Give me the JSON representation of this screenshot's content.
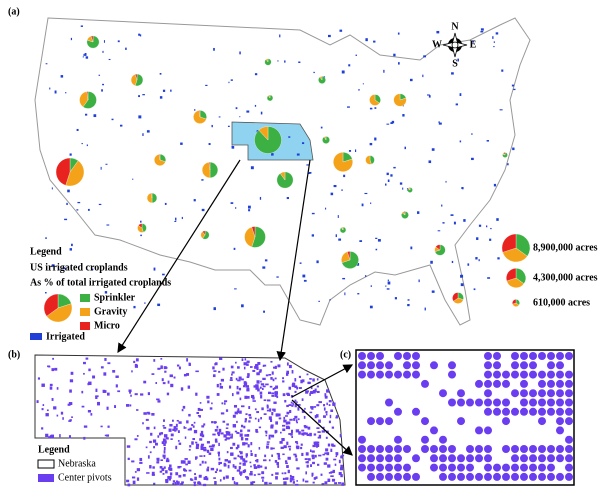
{
  "panel_a": {
    "label": "(a)",
    "compass": {
      "n": "N",
      "s": "S",
      "e": "E",
      "w": "W"
    },
    "legend": {
      "title": "Legend",
      "subtitle": "US irrigated croplands",
      "note": "As % of total irrigated croplands",
      "categories": [
        {
          "name": "Sprinkler",
          "color": "#3cb043"
        },
        {
          "name": "Gravity",
          "color": "#f5a21b"
        },
        {
          "name": "Micro",
          "color": "#e8221f"
        }
      ],
      "irrigated": {
        "name": "Irrigated",
        "color": "#1f3fd6"
      }
    },
    "size_legend": [
      {
        "value": 8900000,
        "label": "8,900,000 acres"
      },
      {
        "value": 4300000,
        "label": "4,300,000 acres"
      },
      {
        "value": 610000,
        "label": "610,000 acres"
      }
    ],
    "pies": [
      {
        "acres": 1700000,
        "shares": [
          80,
          15,
          5
        ]
      },
      {
        "acres": 1600000,
        "shares": [
          55,
          40,
          5
        ]
      },
      {
        "acres": 3300000,
        "shares": [
          60,
          38,
          2
        ]
      },
      {
        "acres": 2000000,
        "shares": [
          30,
          68,
          2
        ]
      },
      {
        "acres": 1500000,
        "shares": [
          30,
          68,
          2
        ]
      },
      {
        "acres": 1100000,
        "shares": [
          50,
          48,
          2
        ]
      },
      {
        "acres": 8900000,
        "shares": [
          10,
          45,
          45
        ]
      },
      {
        "acres": 2800000,
        "shares": [
          50,
          48,
          2
        ]
      },
      {
        "acres": 900000,
        "shares": [
          45,
          40,
          15
        ]
      },
      {
        "acres": 800000,
        "shares": [
          60,
          30,
          10
        ]
      },
      {
        "acres": 5000000,
        "shares": [
          55,
          40,
          5
        ]
      },
      {
        "acres": 8300000,
        "shares": [
          88,
          12,
          0
        ]
      },
      {
        "acres": 3000000,
        "shares": [
          90,
          10,
          0
        ]
      },
      {
        "acres": 400000,
        "shares": [
          90,
          10,
          0
        ]
      },
      {
        "acres": 500000,
        "shares": [
          90,
          10,
          0
        ]
      },
      {
        "acres": 600000,
        "shares": [
          90,
          10,
          0
        ]
      },
      {
        "acres": 600000,
        "shares": [
          92,
          8,
          0
        ]
      },
      {
        "acres": 4300000,
        "shares": [
          20,
          80,
          0
        ]
      },
      {
        "acres": 1400000,
        "shares": [
          35,
          65,
          0
        ]
      },
      {
        "acres": 1800000,
        "shares": [
          20,
          80,
          0
        ]
      },
      {
        "acres": 900000,
        "shares": [
          45,
          55,
          0
        ]
      },
      {
        "acres": 400000,
        "shares": [
          90,
          8,
          2
        ]
      },
      {
        "acres": 300000,
        "shares": [
          85,
          10,
          5
        ]
      },
      {
        "acres": 600000,
        "shares": [
          85,
          10,
          5
        ]
      },
      {
        "acres": 1300000,
        "shares": [
          70,
          15,
          15
        ]
      },
      {
        "acres": 1400000,
        "shares": [
          30,
          35,
          35
        ]
      },
      {
        "acres": 3400000,
        "shares": [
          70,
          25,
          5
        ]
      },
      {
        "acres": 300000,
        "shares": [
          80,
          10,
          10
        ]
      }
    ]
  },
  "panel_b": {
    "label": "(b)",
    "legend": {
      "title": "Legend",
      "items": [
        {
          "name": "Nebraska",
          "color": "#ffffff"
        },
        {
          "name": "Center pivots",
          "color": "#6a3df0"
        }
      ]
    }
  },
  "panel_c": {
    "label": "(c)"
  }
}
